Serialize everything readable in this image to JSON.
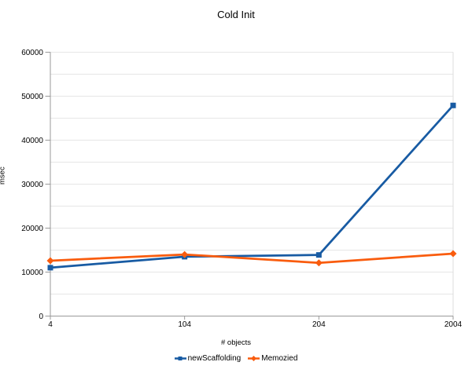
{
  "chart_data": {
    "type": "line",
    "title": "Cold Init",
    "xlabel": "# objects",
    "ylabel": "msec",
    "categories": [
      "4",
      "104",
      "204",
      "2004"
    ],
    "series": [
      {
        "name": "newScaffolding",
        "color": "#185ba3",
        "marker": "square",
        "values": [
          11000,
          13500,
          13900,
          47900
        ]
      },
      {
        "name": "Memozied",
        "color": "#f95c0e",
        "marker": "diamond",
        "values": [
          12600,
          14000,
          12100,
          14200
        ]
      }
    ],
    "ylim": [
      0,
      60000
    ],
    "y_major_tick_interval": 10000,
    "y_minor_gridline_interval": 5000,
    "grid": true,
    "legend_position": "bottom"
  },
  "style_colors": {
    "gridline": "#e6e6e6",
    "axis_line": "#999999",
    "plot_right_border": "#dcdcdc",
    "text": "#000000",
    "background": "#ffffff"
  }
}
